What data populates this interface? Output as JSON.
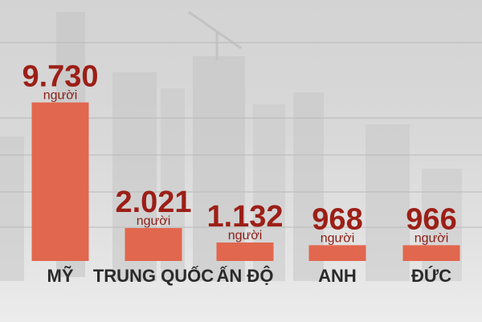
{
  "colors": {
    "bar": "#e1674e",
    "value_text": "#9c1f17",
    "unit_text": "#8a1d15",
    "category_text": "#2a2a2a",
    "gridline": "#b8b8b8",
    "skyline": "#bdbdbd"
  },
  "chart_data": {
    "type": "bar",
    "title": "",
    "xlabel": "",
    "ylabel": "",
    "categories": [
      "MỸ",
      "TRUNG QUỐC",
      "ẤN ĐỘ",
      "ANH",
      "ĐỨC"
    ],
    "values": [
      9730,
      2021,
      1132,
      968,
      966
    ],
    "value_labels": [
      "9.730",
      "2.021",
      "1.132",
      "968",
      "966"
    ],
    "unit": "người",
    "ylim": [
      0,
      10300
    ],
    "grid": true,
    "legend": "none"
  }
}
